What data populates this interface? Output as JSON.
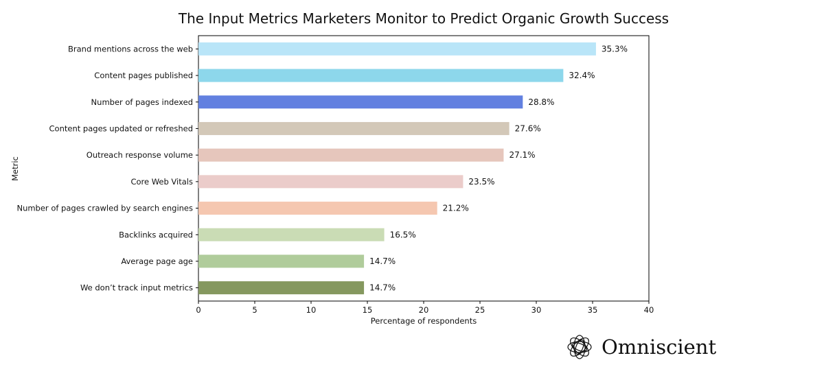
{
  "chart_data": {
    "type": "bar",
    "orientation": "horizontal",
    "title": "The Input Metrics Marketers Monitor to Predict Organic Growth Success",
    "xlabel": "Percentage of respondents",
    "ylabel": "Metric",
    "xlim": [
      0,
      40
    ],
    "xticks": [
      "0",
      "5",
      "10",
      "15",
      "20",
      "25",
      "30",
      "35",
      "40"
    ],
    "categories": [
      "Brand mentions across the web",
      "Content pages published",
      "Number of pages indexed",
      "Content pages updated or refreshed",
      "Outreach response volume",
      "Core Web Vitals",
      "Number of pages crawled by search engines",
      "Backlinks acquired",
      "Average page age",
      "We don’t track input metrics"
    ],
    "values": [
      35.3,
      32.4,
      28.8,
      27.6,
      27.1,
      23.5,
      21.2,
      16.5,
      14.7,
      14.7
    ],
    "value_labels": [
      "35.3%",
      "32.4%",
      "28.8%",
      "27.6%",
      "27.1%",
      "23.5%",
      "21.2%",
      "16.5%",
      "14.7%",
      "14.7%"
    ],
    "colors": [
      "#b9e5f8",
      "#8dd7eb",
      "#6280e0",
      "#d3c8b8",
      "#e6c6bc",
      "#ebccca",
      "#f5c7b0",
      "#cadcb5",
      "#b0cc9b",
      "#85985f"
    ],
    "grid": false
  },
  "brand": {
    "name": "Omniscient",
    "logo_icon": "omniscient-knot-icon"
  }
}
